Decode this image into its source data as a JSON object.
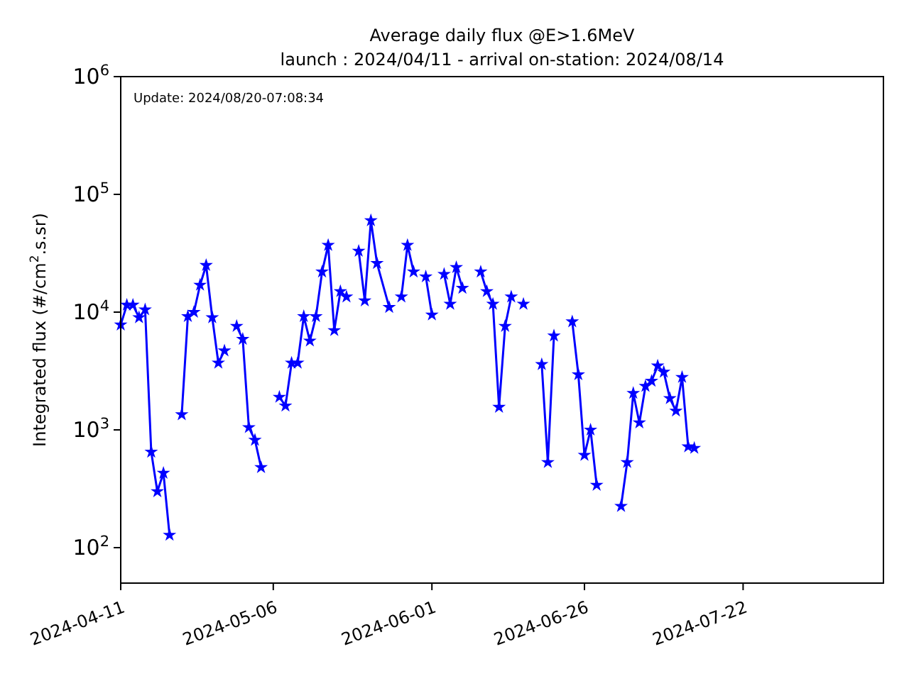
{
  "chart_data": {
    "type": "line",
    "title": "Average daily flux @E>1.6MeV",
    "subtitle": "launch : 2024/04/11 - arrival on-station: 2024/08/14",
    "ylabel": "Integrated flux (#/cm$^{2}$.s.sr)",
    "annotations": [
      "Update: 2024/08/20-07:08:34"
    ],
    "x": [
      "2024-04-11",
      "2024-04-12",
      "2024-04-13",
      "2024-04-14",
      "2024-04-15",
      "2024-04-16",
      "2024-04-17",
      "2024-04-18",
      "2024-04-19",
      "2024-04-20",
      "2024-04-21",
      "2024-04-22",
      "2024-04-23",
      "2024-04-24",
      "2024-04-25",
      "2024-04-26",
      "2024-04-27",
      "2024-04-28",
      "2024-04-29",
      "2024-04-30",
      "2024-05-01",
      "2024-05-02",
      "2024-05-03",
      "2024-05-04",
      "2024-05-05",
      "2024-05-06",
      "2024-05-07",
      "2024-05-08",
      "2024-05-09",
      "2024-05-10",
      "2024-05-11",
      "2024-05-12",
      "2024-05-13",
      "2024-05-14",
      "2024-05-15",
      "2024-05-16",
      "2024-05-17",
      "2024-05-18",
      "2024-05-19",
      "2024-05-20",
      "2024-05-21",
      "2024-05-22",
      "2024-05-23",
      "2024-05-25",
      "2024-05-26",
      "2024-05-27",
      "2024-05-28",
      "2024-05-29",
      "2024-05-30",
      "2024-05-31",
      "2024-06-01",
      "2024-06-02",
      "2024-06-03",
      "2024-06-04",
      "2024-06-05",
      "2024-06-06",
      "2024-06-07",
      "2024-06-08",
      "2024-06-09",
      "2024-06-10",
      "2024-06-11",
      "2024-06-12",
      "2024-06-13",
      "2024-06-14",
      "2024-06-15",
      "2024-06-16",
      "2024-06-17",
      "2024-06-18",
      "2024-06-19",
      "2024-06-20",
      "2024-06-21",
      "2024-06-22",
      "2024-06-23",
      "2024-06-24",
      "2024-06-25",
      "2024-06-26",
      "2024-06-27",
      "2024-06-28",
      "2024-06-29",
      "2024-06-30",
      "2024-07-01",
      "2024-07-02",
      "2024-07-03",
      "2024-07-04",
      "2024-07-05",
      "2024-07-06",
      "2024-07-07",
      "2024-07-08",
      "2024-07-09",
      "2024-07-10",
      "2024-07-11",
      "2024-07-12",
      "2024-07-13",
      "2024-07-14"
    ],
    "series": [
      {
        "color": "#0000ff",
        "values": [
          7800,
          11500,
          11500,
          9000,
          10500,
          650,
          300,
          430,
          128,
          null,
          1350,
          9200,
          10000,
          17000,
          25000,
          9000,
          3700,
          4700,
          null,
          7600,
          5900,
          1050,
          820,
          480,
          null,
          null,
          1900,
          1600,
          3700,
          3700,
          9200,
          5700,
          9200,
          22000,
          37000,
          7000,
          15000,
          13500,
          null,
          33000,
          12500,
          60000,
          26000,
          11000,
          null,
          13500,
          37000,
          22000,
          null,
          20000,
          9500,
          null,
          21000,
          11700,
          24000,
          16000,
          null,
          null,
          22000,
          15000,
          11700,
          1560,
          7600,
          13500,
          null,
          11700,
          null,
          null,
          3600,
          530,
          6300,
          null,
          null,
          8300,
          2950,
          610,
          1000,
          340,
          null,
          null,
          null,
          225,
          530,
          2050,
          1150,
          2350,
          2600,
          3500,
          3100,
          1850,
          1450,
          2800,
          720,
          700
        ]
      }
    ],
    "xlim": [
      "2024-04-11",
      "2024-08-14"
    ],
    "xticks": [
      {
        "value": "2024-04-11",
        "label": "2024-04-11"
      },
      {
        "value": "2024-05-06",
        "label": "2024-05-06"
      },
      {
        "value": "2024-06-01",
        "label": "2024-06-01"
      },
      {
        "value": "2024-06-26",
        "label": "2024-06-26"
      },
      {
        "value": "2024-07-22",
        "label": "2024-07-22"
      }
    ],
    "log": "y",
    "ylim": [
      50,
      1000000
    ],
    "yticks": [
      {
        "value": 100,
        "label": "10$^{2}$"
      },
      {
        "value": 1000,
        "label": "10$^{3}$"
      },
      {
        "value": 10000,
        "label": "10$^{4}$"
      },
      {
        "value": 100000,
        "label": "10$^{5}$"
      },
      {
        "value": 1000000,
        "label": "10$^{6}$"
      }
    ],
    "marker": "star",
    "line_style": "solid",
    "grid": false
  }
}
